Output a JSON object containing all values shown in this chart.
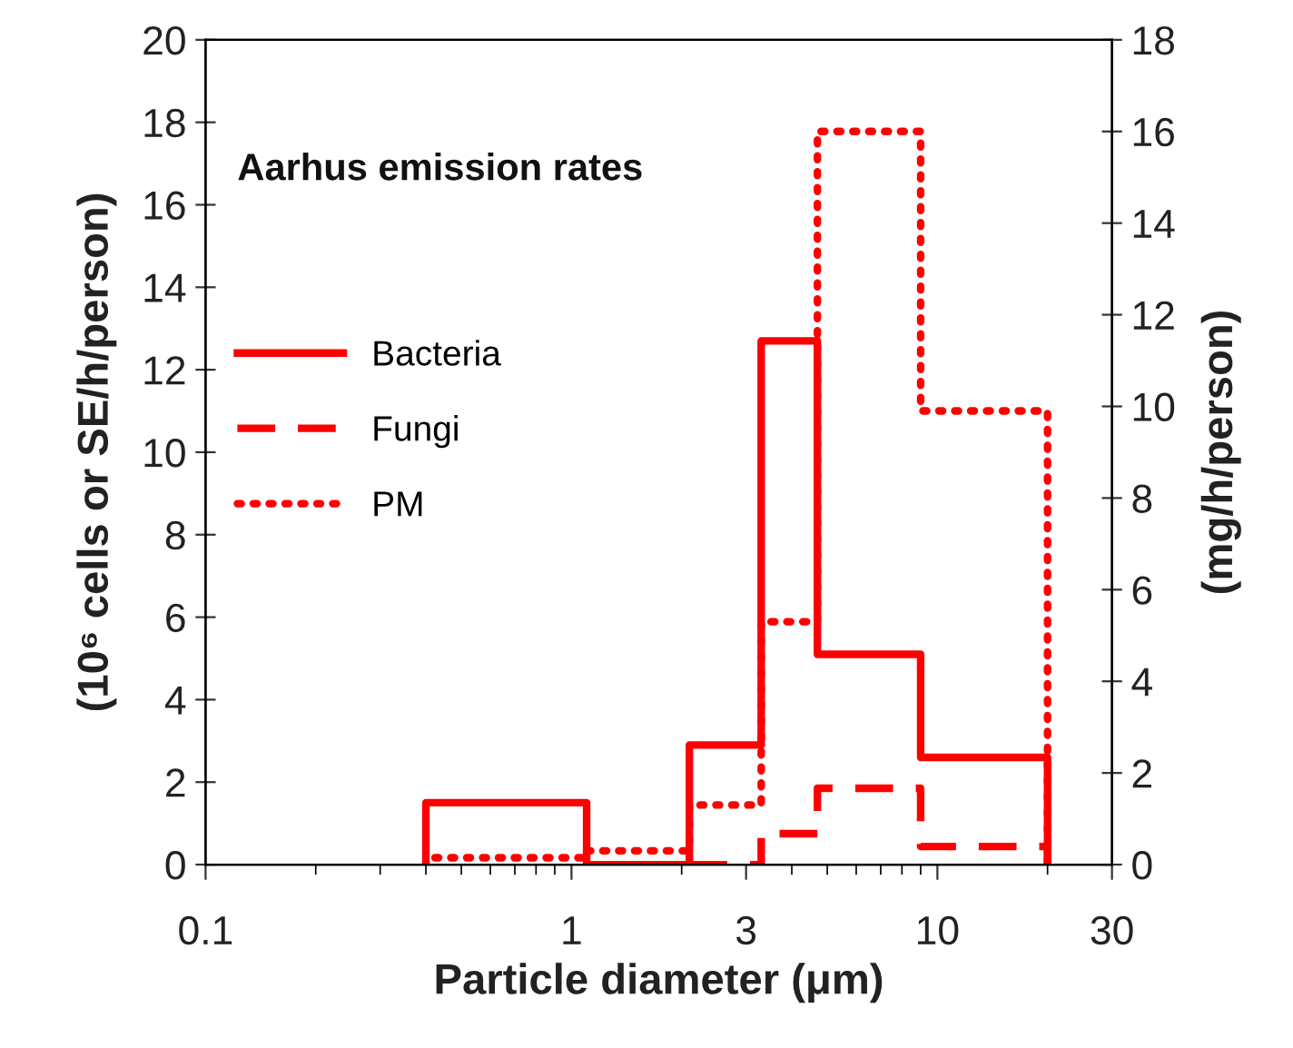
{
  "chart_data": {
    "type": "step",
    "annotations": [
      "Aarhus emission rates"
    ],
    "xlabel": "Particle diameter (μm)",
    "ylabel": "(10⁶ cells or SE/h/person)",
    "y2label": "(mg/h/person)",
    "x": [
      0.4,
      0.4,
      1.1,
      2.1,
      3.3,
      4.7,
      9,
      20
    ],
    "series": [
      {
        "name": "Bacteria",
        "color": "#ff0000",
        "line_style": "solid",
        "values": [
          0,
          1.5,
          0,
          2.9,
          12.7,
          5.1,
          2.6,
          0
        ]
      },
      {
        "name": "Fungi",
        "color": "#ff0000",
        "line_style": "dashed",
        "x": [
          2.1,
          3.3,
          4.7,
          9,
          20
        ],
        "values": [
          0,
          0.75,
          1.85,
          0.44,
          0
        ]
      },
      {
        "name": "PM",
        "color": "#ff0000",
        "line_style": "dotted",
        "axis": "y2",
        "values": [
          0,
          0.15,
          0.3,
          1.3,
          5.3,
          16.0,
          9.9,
          0
        ]
      }
    ],
    "log": "x",
    "xlim": [
      0.1,
      30
    ],
    "xticks": [
      0.1,
      1,
      3,
      10,
      30
    ],
    "ylim": [
      0,
      20
    ],
    "yticks": [
      0,
      2,
      4,
      6,
      8,
      10,
      12,
      14,
      16,
      18,
      20
    ],
    "y2lim": [
      0,
      18
    ],
    "y2ticks": [
      0,
      2,
      4,
      6,
      8,
      10,
      12,
      14,
      16,
      18
    ],
    "grid": false,
    "legend": "center left"
  }
}
